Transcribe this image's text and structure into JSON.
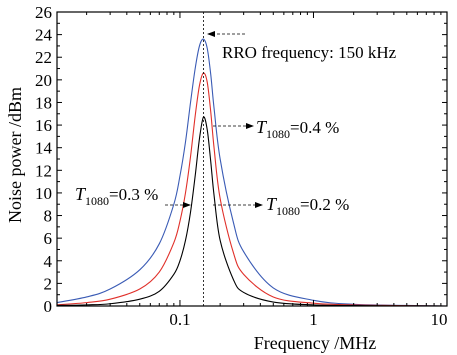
{
  "chart_data": {
    "type": "line",
    "xlabel": "Frequency /MHz",
    "ylabel": "Noise power /dBm",
    "x_scale": "log",
    "xlim": [
      0.012,
      10
    ],
    "ylim": [
      0,
      26
    ],
    "x_ticks": [
      {
        "value": 0.1,
        "label": "0.1"
      },
      {
        "value": 1,
        "label": "1"
      },
      {
        "value": 10,
        "label": "10"
      }
    ],
    "y_ticks": [
      0,
      2,
      4,
      6,
      8,
      10,
      12,
      14,
      16,
      18,
      20,
      22,
      24,
      26
    ],
    "series": [
      {
        "color": "#3a5bb5",
        "x": [
          0.012,
          0.02,
          0.03,
          0.05,
          0.07,
          0.09,
          0.1,
          0.11,
          0.12,
          0.13,
          0.14,
          0.15,
          0.16,
          0.17,
          0.18,
          0.2,
          0.25,
          0.3,
          0.5,
          1,
          2,
          5,
          10
        ],
        "y": [
          0.3,
          0.8,
          1.5,
          3.2,
          5.5,
          9.0,
          11.5,
          14.5,
          18.0,
          21.0,
          23.0,
          23.6,
          22.8,
          20.5,
          17.5,
          13.0,
          7.5,
          4.8,
          1.6,
          0.5,
          0.15,
          0.05,
          0.0
        ]
      },
      {
        "color": "#e0302a",
        "x": [
          0.012,
          0.02,
          0.03,
          0.05,
          0.07,
          0.09,
          0.1,
          0.11,
          0.12,
          0.13,
          0.14,
          0.15,
          0.16,
          0.17,
          0.18,
          0.2,
          0.25,
          0.3,
          0.5,
          1,
          2,
          5,
          10
        ],
        "y": [
          0.1,
          0.3,
          0.6,
          1.5,
          3.0,
          5.6,
          7.5,
          10.0,
          13.2,
          16.8,
          19.5,
          20.6,
          19.8,
          17.2,
          14.0,
          9.5,
          4.8,
          2.8,
          0.8,
          0.25,
          0.1,
          0.03,
          0.0
        ]
      },
      {
        "color": "#000000",
        "x": [
          0.012,
          0.02,
          0.03,
          0.05,
          0.07,
          0.09,
          0.1,
          0.11,
          0.12,
          0.13,
          0.14,
          0.15,
          0.16,
          0.17,
          0.18,
          0.2,
          0.25,
          0.3,
          0.5,
          1,
          2,
          5,
          10
        ],
        "y": [
          0.05,
          0.1,
          0.2,
          0.6,
          1.3,
          2.8,
          4.0,
          5.8,
          8.3,
          11.5,
          14.8,
          16.7,
          15.6,
          12.8,
          9.8,
          5.8,
          2.4,
          1.2,
          0.35,
          0.1,
          0.04,
          0.01,
          0.0
        ]
      }
    ],
    "reference_line": {
      "x": 0.15,
      "style": "dotted"
    },
    "annotations": {
      "rro": {
        "text": "RRO frequency: 150 kHz"
      },
      "t04": {
        "var": "T",
        "sub": "1080",
        "val": "=0.4 %"
      },
      "t03": {
        "var": "T",
        "sub": "1080",
        "val": "=0.3 %"
      },
      "t02": {
        "var": "T",
        "sub": "1080",
        "val": "=0.2 %"
      }
    }
  }
}
